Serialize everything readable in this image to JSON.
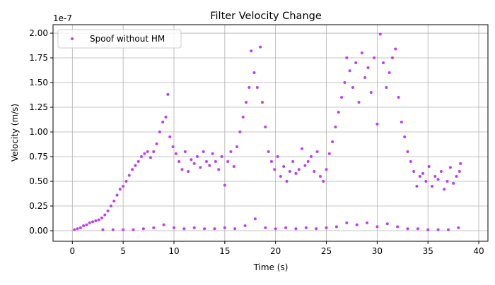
{
  "chart_data": {
    "type": "scatter",
    "title": "Filter Velocity Change",
    "xlabel": "Time (s)",
    "ylabel": "Velocity (m/s)",
    "offset_label": "1e-7",
    "xlim": [
      -1.9,
      40.9
    ],
    "ylim": [
      -0.107,
      2.086
    ],
    "xticks": [
      0,
      5,
      10,
      15,
      20,
      25,
      30,
      35,
      40
    ],
    "yticks": [
      {
        "value": 0,
        "label": "0.00"
      },
      {
        "value": 0.25,
        "label": "0.25"
      },
      {
        "value": 0.5,
        "label": "0.50"
      },
      {
        "value": 0.75,
        "label": "0.75"
      },
      {
        "value": 1,
        "label": "1.00"
      },
      {
        "value": 1.25,
        "label": "1.25"
      },
      {
        "value": 1.5,
        "label": "1.50"
      },
      {
        "value": 1.75,
        "label": "1.75"
      },
      {
        "value": 2,
        "label": "2.00"
      }
    ],
    "grid": true,
    "legend": "upper-left",
    "series": [
      {
        "name": "Spoof without HM",
        "color": "#b840f5",
        "x": [
          0.2,
          0.5,
          0.8,
          1.1,
          1.4,
          1.7,
          2.0,
          2.3,
          2.6,
          2.9,
          3.2,
          3.5,
          3.8,
          4.1,
          4.4,
          4.7,
          5.0,
          5.3,
          5.6,
          5.9,
          6.2,
          6.5,
          6.8,
          7.1,
          7.4,
          7.7,
          8.0,
          8.3,
          8.6,
          8.9,
          9.2,
          9.4,
          9.6,
          9.9,
          10.2,
          10.5,
          10.8,
          11.1,
          11.4,
          11.7,
          12.0,
          12.3,
          12.6,
          12.9,
          13.2,
          13.5,
          13.8,
          14.1,
          14.4,
          14.7,
          15.0,
          15.3,
          15.6,
          15.9,
          16.2,
          16.5,
          16.8,
          17.1,
          17.4,
          17.6,
          17.9,
          18.2,
          18.5,
          18.7,
          19.0,
          19.3,
          19.6,
          19.9,
          20.2,
          20.5,
          20.8,
          21.1,
          21.4,
          21.7,
          22.0,
          22.3,
          22.6,
          22.9,
          23.2,
          23.5,
          23.8,
          24.1,
          24.4,
          24.7,
          25.0,
          25.3,
          25.6,
          25.9,
          26.2,
          26.5,
          26.8,
          27.0,
          27.3,
          27.6,
          27.9,
          28.2,
          28.5,
          28.8,
          29.1,
          29.4,
          29.7,
          30.0,
          30.3,
          30.6,
          30.9,
          31.2,
          31.5,
          31.8,
          32.1,
          32.4,
          32.7,
          33.0,
          33.3,
          33.6,
          33.9,
          34.2,
          34.5,
          34.8,
          35.1,
          35.4,
          35.7,
          36.0,
          36.3,
          36.6,
          36.9,
          37.2,
          37.5,
          37.8,
          38.1,
          38.2,
          3,
          4,
          5,
          6,
          7,
          8,
          9,
          10,
          11,
          12,
          13,
          14,
          15,
          16,
          17,
          18,
          19,
          20,
          21,
          22,
          23,
          24,
          25,
          26,
          27,
          28,
          29,
          30,
          31,
          32,
          33,
          34,
          35,
          36,
          37,
          38
        ],
        "values": [
          0.01,
          0.02,
          0.03,
          0.05,
          0.06,
          0.08,
          0.09,
          0.1,
          0.11,
          0.13,
          0.16,
          0.2,
          0.25,
          0.3,
          0.36,
          0.42,
          0.45,
          0.5,
          0.56,
          0.62,
          0.66,
          0.7,
          0.75,
          0.78,
          0.8,
          0.74,
          0.8,
          0.88,
          1.0,
          1.1,
          1.15,
          1.38,
          0.95,
          0.85,
          0.78,
          0.7,
          0.62,
          0.8,
          0.6,
          0.72,
          0.68,
          0.75,
          0.64,
          0.8,
          0.7,
          0.66,
          0.78,
          0.7,
          0.62,
          0.75,
          0.46,
          0.7,
          0.8,
          0.65,
          0.85,
          1.0,
          1.15,
          1.3,
          1.45,
          1.82,
          1.6,
          1.45,
          1.86,
          1.3,
          1.05,
          0.8,
          0.7,
          0.62,
          0.75,
          0.55,
          0.65,
          0.5,
          0.6,
          0.7,
          0.58,
          0.62,
          0.83,
          0.66,
          0.7,
          0.75,
          0.6,
          0.8,
          0.55,
          0.5,
          0.62,
          0.78,
          0.9,
          1.05,
          1.2,
          1.35,
          1.5,
          1.75,
          1.62,
          1.45,
          1.7,
          1.3,
          1.8,
          1.55,
          1.65,
          1.4,
          1.75,
          1.08,
          1.99,
          1.7,
          1.45,
          1.6,
          1.75,
          1.84,
          1.35,
          1.1,
          0.95,
          0.8,
          0.7,
          0.6,
          0.45,
          0.55,
          0.58,
          0.5,
          0.65,
          0.45,
          0.55,
          0.52,
          0.6,
          0.42,
          0.5,
          0.64,
          0.48,
          0.55,
          0.6,
          0.68,
          0.01,
          0.01,
          0.01,
          0.01,
          0.02,
          0.03,
          0.06,
          0.03,
          0.02,
          0.03,
          0.02,
          0.02,
          0.03,
          0.02,
          0.05,
          0.12,
          0.03,
          0.02,
          0.03,
          0.02,
          0.03,
          0.02,
          0.03,
          0.04,
          0.08,
          0.06,
          0.08,
          0.04,
          0.07,
          0.04,
          0.02,
          0.02,
          0.01,
          0.01,
          0.01,
          0.03
        ]
      }
    ]
  }
}
